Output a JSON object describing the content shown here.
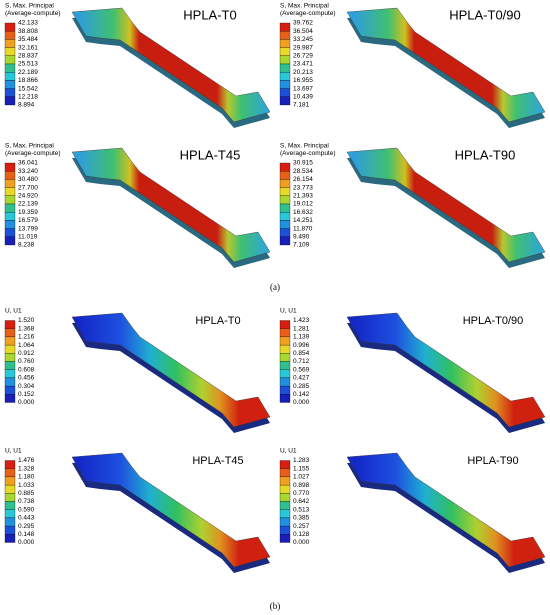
{
  "panels": [
    {
      "caption": "(a)",
      "plots": [
        {
          "title": "HPLA-T0",
          "legend": {
            "header": [
              "S, Max. Principal",
              "(Average-compute)"
            ],
            "values": [
              "42.133",
              "38.808",
              "35.484",
              "32.161",
              "28.837",
              "25.513",
              "22.189",
              "18.866",
              "15.542",
              "12.218",
              "8.894"
            ]
          }
        },
        {
          "title": "HPLA-T0/90",
          "legend": {
            "header": [
              "S, Max. Principal",
              "(Average-compute)"
            ],
            "values": [
              "39.762",
              "36.504",
              "33.245",
              "29.987",
              "26.729",
              "23.471",
              "20.213",
              "16.955",
              "13.697",
              "10.439",
              "7.181"
            ]
          }
        },
        {
          "title": "HPLA-T45",
          "legend": {
            "header": [
              "S, Max. Principal",
              "(Average-compute)"
            ],
            "values": [
              "36.041",
              "33.240",
              "30.480",
              "27.700",
              "24.920",
              "22.139",
              "19.359",
              "16.579",
              "13.799",
              "11.019",
              "8.238"
            ]
          }
        },
        {
          "title": "HPLA-T90",
          "legend": {
            "header": [
              "S, Max. Principal",
              "(Average-compute)"
            ],
            "values": [
              "30.915",
              "28.534",
              "26.154",
              "23.773",
              "21.393",
              "19.012",
              "16.632",
              "14.251",
              "11.870",
              "9.490",
              "7.109"
            ]
          }
        }
      ]
    },
    {
      "caption": "(b)",
      "plots": [
        {
          "title": "HPLA-T0",
          "legend": {
            "header": [
              "U, U1"
            ],
            "values": [
              "1.520",
              "1.368",
              "1.216",
              "1.064",
              "0.912",
              "0.760",
              "0.608",
              "0.456",
              "0.304",
              "0.152",
              "0.000"
            ]
          }
        },
        {
          "title": "HPLA-T0/90",
          "legend": {
            "header": [
              "U, U1"
            ],
            "values": [
              "1.423",
              "1.281",
              "1.139",
              "0.996",
              "0.854",
              "0.712",
              "0.569",
              "0.427",
              "0.285",
              "0.142",
              "0.000"
            ]
          }
        },
        {
          "title": "HPLA-T45",
          "legend": {
            "header": [
              "U, U1"
            ],
            "values": [
              "1.476",
              "1.328",
              "1.180",
              "1.033",
              "0.885",
              "0.738",
              "0.590",
              "0.443",
              "0.295",
              "0.148",
              "0.000"
            ]
          }
        },
        {
          "title": "HPLA-T90",
          "legend": {
            "header": [
              "U, U1"
            ],
            "values": [
              "1.283",
              "1.155",
              "1.027",
              "0.898",
              "0.770",
              "0.642",
              "0.513",
              "0.385",
              "0.257",
              "0.128",
              "0.000"
            ]
          }
        }
      ]
    }
  ]
}
